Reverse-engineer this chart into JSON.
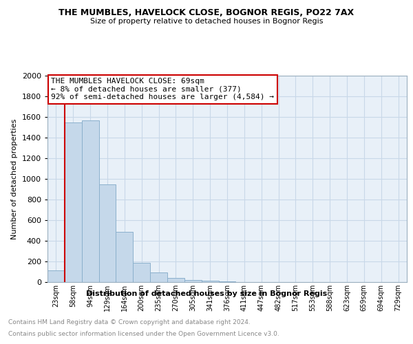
{
  "title": "THE MUMBLES, HAVELOCK CLOSE, BOGNOR REGIS, PO22 7AX",
  "subtitle": "Size of property relative to detached houses in Bognor Regis",
  "xlabel": "Distribution of detached houses by size in Bognor Regis",
  "ylabel": "Number of detached properties",
  "categories": [
    "23sqm",
    "58sqm",
    "94sqm",
    "129sqm",
    "164sqm",
    "200sqm",
    "235sqm",
    "270sqm",
    "305sqm",
    "341sqm",
    "376sqm",
    "411sqm",
    "447sqm",
    "482sqm",
    "517sqm",
    "553sqm",
    "588sqm",
    "623sqm",
    "659sqm",
    "694sqm",
    "729sqm"
  ],
  "values": [
    115,
    1545,
    1570,
    950,
    490,
    185,
    95,
    40,
    20,
    12,
    5,
    3,
    2,
    1,
    1,
    1,
    0,
    0,
    0,
    0,
    0
  ],
  "bar_color": "#c5d8ea",
  "bar_edge_color": "#8bb0cc",
  "annotation_text": "THE MUMBLES HAVELOCK CLOSE: 69sqm\n← 8% of detached houses are smaller (377)\n92% of semi-detached houses are larger (4,584) →",
  "annotation_box_color": "#cc0000",
  "footer1": "Contains HM Land Registry data © Crown copyright and database right 2024.",
  "footer2": "Contains public sector information licensed under the Open Government Licence v3.0.",
  "ylim": [
    0,
    2000
  ],
  "yticks": [
    0,
    200,
    400,
    600,
    800,
    1000,
    1200,
    1400,
    1600,
    1800,
    2000
  ],
  "grid_color": "#c8d8e8",
  "background_color": "#e8f0f8",
  "red_line_x": 0.5,
  "title_fontsize": 9,
  "subtitle_fontsize": 8
}
